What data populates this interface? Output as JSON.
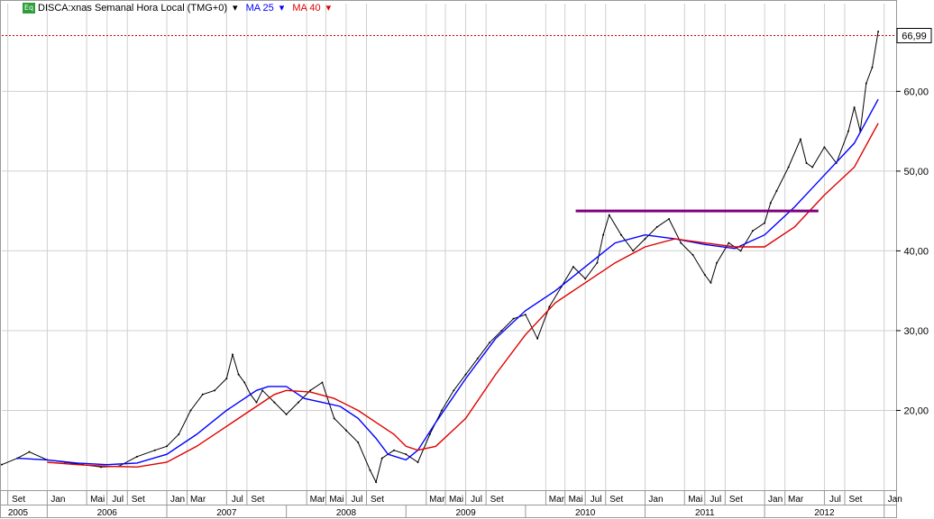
{
  "header": {
    "symbol_icon": "equity-icon",
    "symbol_badge": "Eq",
    "title": "DISCA:xnas Semanal Hora Local (TMG+0)",
    "indicators": [
      {
        "label": "MA 25",
        "color": "#0000ff"
      },
      {
        "label": "MA 40",
        "color": "#e00000"
      }
    ]
  },
  "chart_data": {
    "type": "line",
    "title": "DISCA:xnas Semanal Hora Local (TMG+0)",
    "xlabel": "",
    "ylabel": "",
    "ylim": [
      10,
      71
    ],
    "y_ticks": [
      "20,00",
      "30,00",
      "40,00",
      "50,00",
      "60,00"
    ],
    "last_price_label": "66,99",
    "last_price": 66.99,
    "grid": true,
    "x_month_labels": [
      {
        "t": 2005.67,
        "label": "Set"
      },
      {
        "t": 2006.0,
        "label": "Jan"
      },
      {
        "t": 2006.33,
        "label": "Mai"
      },
      {
        "t": 2006.5,
        "label": "Jul"
      },
      {
        "t": 2006.67,
        "label": "Set"
      },
      {
        "t": 2007.0,
        "label": "Jan"
      },
      {
        "t": 2007.17,
        "label": "Mar"
      },
      {
        "t": 2007.5,
        "label": "Jul"
      },
      {
        "t": 2007.67,
        "label": "Set"
      },
      {
        "t": 2008.17,
        "label": "Mar"
      },
      {
        "t": 2008.33,
        "label": "Mai"
      },
      {
        "t": 2008.5,
        "label": "Jul"
      },
      {
        "t": 2008.67,
        "label": "Set"
      },
      {
        "t": 2009.17,
        "label": "Mar"
      },
      {
        "t": 2009.33,
        "label": "Mai"
      },
      {
        "t": 2009.5,
        "label": "Jul"
      },
      {
        "t": 2009.67,
        "label": "Set"
      },
      {
        "t": 2010.17,
        "label": "Mar"
      },
      {
        "t": 2010.33,
        "label": "Mai"
      },
      {
        "t": 2010.5,
        "label": "Jul"
      },
      {
        "t": 2010.67,
        "label": "Set"
      },
      {
        "t": 2011.0,
        "label": "Jan"
      },
      {
        "t": 2011.33,
        "label": "Mai"
      },
      {
        "t": 2011.5,
        "label": "Jul"
      },
      {
        "t": 2011.67,
        "label": "Set"
      },
      {
        "t": 2012.0,
        "label": "Jan"
      },
      {
        "t": 2012.17,
        "label": "Mar"
      },
      {
        "t": 2012.5,
        "label": "Jul"
      },
      {
        "t": 2012.67,
        "label": "Set"
      },
      {
        "t": 2013.0,
        "label": "Jan"
      }
    ],
    "x_year_labels": [
      {
        "t": 2005.5,
        "label": "2005"
      },
      {
        "t": 2006.5,
        "label": "2006"
      },
      {
        "t": 2007.5,
        "label": "2007"
      },
      {
        "t": 2008.5,
        "label": "2008"
      },
      {
        "t": 2009.5,
        "label": "2009"
      },
      {
        "t": 2010.5,
        "label": "2010"
      },
      {
        "t": 2011.5,
        "label": "2011"
      },
      {
        "t": 2012.5,
        "label": "2012"
      }
    ],
    "xlim": [
      2005.62,
      2013.1
    ],
    "series": [
      {
        "name": "DISCA:xnas",
        "kind": "price",
        "color": "#000000",
        "x": [
          2005.62,
          2005.75,
          2005.85,
          2006.0,
          2006.15,
          2006.3,
          2006.45,
          2006.6,
          2006.75,
          2006.9,
          2007.0,
          2007.1,
          2007.2,
          2007.3,
          2007.4,
          2007.5,
          2007.55,
          2007.6,
          2007.65,
          2007.7,
          2007.75,
          2007.8,
          2007.9,
          2008.0,
          2008.1,
          2008.2,
          2008.3,
          2008.4,
          2008.5,
          2008.6,
          2008.7,
          2008.75,
          2008.8,
          2008.9,
          2009.0,
          2009.1,
          2009.2,
          2009.3,
          2009.4,
          2009.5,
          2009.6,
          2009.7,
          2009.8,
          2009.9,
          2010.0,
          2010.1,
          2010.2,
          2010.3,
          2010.4,
          2010.5,
          2010.6,
          2010.65,
          2010.7,
          2010.8,
          2010.9,
          2011.0,
          2011.1,
          2011.2,
          2011.3,
          2011.4,
          2011.5,
          2011.55,
          2011.6,
          2011.7,
          2011.8,
          2011.9,
          2012.0,
          2012.05,
          2012.1,
          2012.2,
          2012.3,
          2012.35,
          2012.4,
          2012.5,
          2012.6,
          2012.7,
          2012.75,
          2012.8,
          2012.85,
          2012.9,
          2012.95
        ],
        "values": [
          13.2,
          14.0,
          14.8,
          13.8,
          13.5,
          13.2,
          12.9,
          13.0,
          14.2,
          15.0,
          15.5,
          17.0,
          20.0,
          22.0,
          22.5,
          24.0,
          27.0,
          24.5,
          23.5,
          22.0,
          21.0,
          22.5,
          21.0,
          19.5,
          21.0,
          22.5,
          23.5,
          19.0,
          17.5,
          16.0,
          12.5,
          11.0,
          14.0,
          15.0,
          14.5,
          13.5,
          17.0,
          20.0,
          22.5,
          24.5,
          26.5,
          28.5,
          30.0,
          31.5,
          32.0,
          29.0,
          33.0,
          35.5,
          38.0,
          36.5,
          38.5,
          42.0,
          44.5,
          42.0,
          40.0,
          41.5,
          43.0,
          44.0,
          41.0,
          39.5,
          37.0,
          36.0,
          38.5,
          41.0,
          40.0,
          42.5,
          43.5,
          46.0,
          47.5,
          50.5,
          54.0,
          51.0,
          50.5,
          53.0,
          51.0,
          55.0,
          58.0,
          55.0,
          61.0,
          63.0,
          67.5
        ]
      },
      {
        "name": "MA 25",
        "color": "#0000ff",
        "x": [
          2005.75,
          2006.0,
          2006.25,
          2006.5,
          2006.75,
          2007.0,
          2007.25,
          2007.5,
          2007.75,
          2007.85,
          2008.0,
          2008.15,
          2008.3,
          2008.45,
          2008.6,
          2008.75,
          2008.85,
          2009.0,
          2009.1,
          2009.25,
          2009.5,
          2009.75,
          2010.0,
          2010.25,
          2010.5,
          2010.75,
          2011.0,
          2011.25,
          2011.5,
          2011.75,
          2012.0,
          2012.25,
          2012.5,
          2012.75,
          2012.95
        ],
        "values": [
          14.0,
          13.8,
          13.4,
          13.2,
          13.4,
          14.5,
          17.0,
          20.0,
          22.5,
          23.0,
          23.0,
          21.5,
          21.0,
          20.5,
          19.0,
          16.5,
          14.5,
          13.8,
          15.0,
          18.5,
          24.0,
          29.0,
          32.5,
          35.0,
          38.0,
          41.0,
          42.0,
          41.5,
          40.8,
          40.3,
          42.0,
          45.5,
          49.5,
          53.5,
          59.0
        ]
      },
      {
        "name": "MA 40",
        "color": "#e00000",
        "x": [
          2006.0,
          2006.25,
          2006.5,
          2006.75,
          2007.0,
          2007.25,
          2007.5,
          2007.75,
          2007.9,
          2008.0,
          2008.2,
          2008.4,
          2008.6,
          2008.75,
          2008.9,
          2009.0,
          2009.1,
          2009.25,
          2009.5,
          2009.75,
          2010.0,
          2010.25,
          2010.5,
          2010.75,
          2011.0,
          2011.25,
          2011.5,
          2011.75,
          2012.0,
          2012.25,
          2012.5,
          2012.75,
          2012.95
        ],
        "values": [
          13.5,
          13.2,
          13.0,
          12.9,
          13.5,
          15.5,
          18.0,
          20.5,
          22.0,
          22.5,
          22.3,
          21.5,
          20.0,
          18.5,
          17.0,
          15.5,
          15.0,
          15.5,
          19.0,
          24.5,
          29.5,
          33.5,
          36.0,
          38.5,
          40.5,
          41.5,
          41.0,
          40.5,
          40.5,
          43.0,
          47.0,
          50.5,
          56.0
        ]
      }
    ],
    "annotations": [
      {
        "kind": "horizontal-line",
        "label": "",
        "y": 45.0,
        "x_start": 2010.42,
        "x_end": 2012.45,
        "color": "#800080"
      },
      {
        "kind": "last-price-line",
        "label": "66,99",
        "y": 66.99,
        "color": "#cc0000"
      }
    ]
  }
}
